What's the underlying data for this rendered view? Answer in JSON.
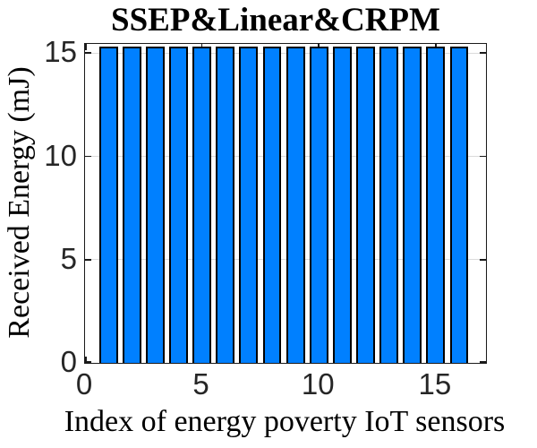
{
  "chart_data": {
    "type": "bar",
    "title": "SSEP&Linear&CRPM",
    "xlabel": "Index of energy poverty IoT sensors",
    "ylabel": "Received Energy (mJ)",
    "x": [
      1,
      2,
      3,
      4,
      5,
      6,
      7,
      8,
      9,
      10,
      11,
      12,
      13,
      14,
      15,
      16
    ],
    "values": [
      15.3,
      15.3,
      15.3,
      15.3,
      15.3,
      15.3,
      15.3,
      15.3,
      15.3,
      15.3,
      15.3,
      15.3,
      15.3,
      15.3,
      15.3,
      15.3
    ],
    "bar_width": 0.8,
    "xlim": [
      0,
      17.15
    ],
    "ylim": [
      0,
      15.45
    ],
    "xticks": [
      0,
      5,
      10,
      15
    ],
    "yticks": [
      0,
      5,
      10,
      15
    ],
    "xtick_labels": [
      "0",
      "5",
      "10",
      "15"
    ],
    "ytick_labels": [
      "0",
      "5",
      "10",
      "15"
    ],
    "grid": "horizontal",
    "legend_position": "none",
    "colors": {
      "bar_fill": "#0080FF",
      "bar_edge": "#000000",
      "grid_line": "#DBDBDB",
      "axis_frame": "#1A1A1A",
      "tick_mark": "#1A1A1A",
      "tick_label": "#262626",
      "title_text": "#000000",
      "background": "#FFFFFF"
    }
  }
}
